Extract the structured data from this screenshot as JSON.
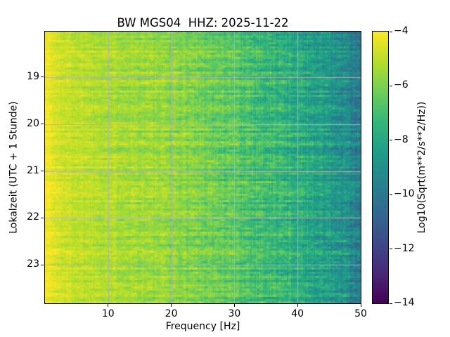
{
  "chart_data": {
    "type": "heatmap",
    "subtype": "seismic-spectrogram",
    "title": "BW MGS04  HHZ: 2025-11-22",
    "xlabel": "Frequency [Hz]",
    "ylabel": "Lokalzeit (UTC + 1 Stunde)",
    "xlim": [
      0,
      50
    ],
    "x_ticks": [
      10,
      20,
      30,
      40,
      50
    ],
    "x_tick_labels": [
      "10",
      "20",
      "30",
      "40",
      "50"
    ],
    "ylim_hours": [
      18.03,
      23.82
    ],
    "y_ticks": [
      19,
      20,
      21,
      22,
      23
    ],
    "y_tick_labels": [
      "19",
      "20",
      "21",
      "22",
      "23"
    ],
    "grid": {
      "visible": true,
      "color": "#b2b2b2",
      "opacity": 0.95
    },
    "colormap": {
      "name": "viridis",
      "stops": [
        {
          "t": 0.0,
          "c": "#440154"
        },
        {
          "t": 0.11,
          "c": "#482878"
        },
        {
          "t": 0.22,
          "c": "#3e4989"
        },
        {
          "t": 0.33,
          "c": "#31688e"
        },
        {
          "t": 0.44,
          "c": "#26828e"
        },
        {
          "t": 0.56,
          "c": "#1f9e89"
        },
        {
          "t": 0.67,
          "c": "#35b779"
        },
        {
          "t": 0.78,
          "c": "#6ece58"
        },
        {
          "t": 0.89,
          "c": "#b5de2b"
        },
        {
          "t": 1.0,
          "c": "#fde725"
        }
      ]
    },
    "colorbar": {
      "label": "Log10(Sqrt(m**2/s**2/Hz))",
      "vmin": -14,
      "vmax": -4,
      "ticks": [
        -4,
        -6,
        -8,
        -10,
        -12,
        -14
      ],
      "tick_labels": [
        "−4",
        "−6",
        "−8",
        "−10",
        "−12",
        "−14"
      ]
    },
    "spectral_profile": {
      "freq_hz": [
        0,
        0.7,
        1.5,
        3,
        6,
        10,
        14,
        18,
        22,
        26,
        30,
        34,
        38,
        42,
        45,
        47,
        48.5,
        50
      ],
      "values": [
        -4.05,
        -4.2,
        -4.5,
        -4.75,
        -4.95,
        -5.15,
        -5.35,
        -5.5,
        -5.75,
        -6.1,
        -6.5,
        -6.95,
        -7.45,
        -7.95,
        -8.45,
        -8.9,
        -9.35,
        -10.0
      ]
    },
    "noise": {
      "seed": 1337,
      "cell": 0.5,
      "row": 0.55,
      "col": 0.22
    }
  }
}
